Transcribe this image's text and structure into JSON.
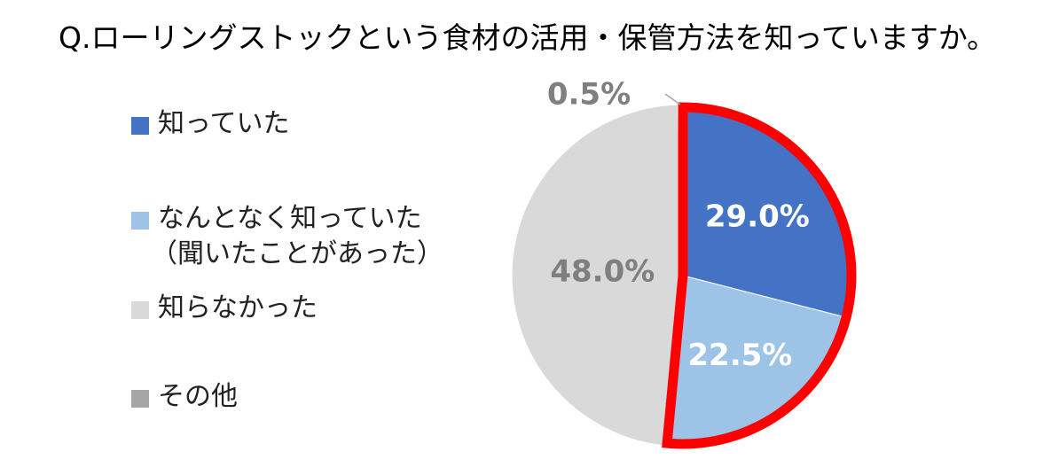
{
  "chart_data": {
    "type": "pie",
    "title": "Q.ローリングストックという食材の活用・保管方法を知っていますか。",
    "categories": [
      "知っていた",
      "なんとなく知っていた（聞いたことがあった）",
      "知らなかった",
      "その他"
    ],
    "legend_lines": [
      [
        "知っていた"
      ],
      [
        "なんとなく知っていた",
        "（聞いたことがあった）"
      ],
      [
        "知らなかった"
      ],
      [
        "その他"
      ]
    ],
    "values": [
      29.0,
      22.5,
      48.0,
      0.5
    ],
    "data_labels": [
      "29.0%",
      "22.5%",
      "48.0%",
      "0.5%"
    ],
    "colors": [
      "#4472C4",
      "#9DC3E6",
      "#D9D9D9",
      "#A5A5A5"
    ],
    "label_colors": [
      "#FFFFFF",
      "#FFFFFF",
      "#7F7F7F",
      "#7F7F7F"
    ],
    "highlight_color": "#FF0000",
    "legend_position": "left"
  }
}
